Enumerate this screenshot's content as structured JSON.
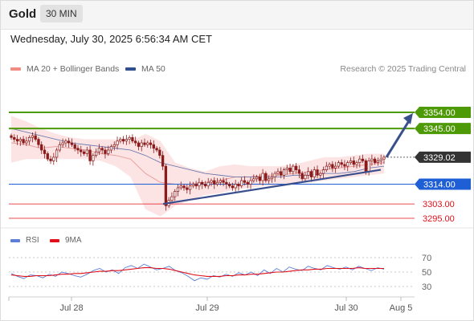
{
  "header": {
    "title": "Gold",
    "timeframe": "30 MIN",
    "datetime": "Wednesday, July 30, 2025 6:56:34 AM CET"
  },
  "legend": {
    "items": [
      {
        "label": "MA 20 + Bollinger Bands",
        "color": "#f28b82"
      },
      {
        "label": "MA 50",
        "color": "#2f4f8f"
      }
    ],
    "credit": "Research © 2025 Trading Central"
  },
  "rsi_legend": {
    "items": [
      {
        "label": "RSI",
        "color": "#5b7fd6"
      },
      {
        "label": "9MA",
        "color": "#e0101a"
      }
    ]
  },
  "colors": {
    "green_level": "#4e9a06",
    "blue_level": "#1f5fd6",
    "red_level": "#e0101a",
    "current_price": "#333333",
    "candle_up": "#ffffff",
    "candle_down": "#8b1a1a",
    "trendline": "#3a4f8e",
    "bollinger_fill": "#fbd5d5",
    "ma50": "#5d6fa8"
  },
  "chart_data": {
    "type": "candlestick",
    "timeframe": "30 MIN",
    "x_ticks": [
      "Jul 28",
      "Jul 29",
      "Jul 30",
      "Aug 5"
    ],
    "y_range": [
      3290,
      3362
    ],
    "levels": [
      {
        "value": 3354.0,
        "label": "3354.00",
        "kind": "resistance",
        "color": "#4e9a06"
      },
      {
        "value": 3345.0,
        "label": "3345.00",
        "kind": "resistance",
        "color": "#4e9a06"
      },
      {
        "value": 3329.02,
        "label": "3329.02",
        "kind": "current",
        "color": "#333333"
      },
      {
        "value": 3314.0,
        "label": "3314.00",
        "kind": "pivot",
        "color": "#1f5fd6"
      },
      {
        "value": 3303.0,
        "label": "3303.00",
        "kind": "support",
        "color": "#e0101a"
      },
      {
        "value": 3295.0,
        "label": "3295.00",
        "kind": "support",
        "color": "#e0101a"
      }
    ],
    "closes": [
      3340,
      3339,
      3338,
      3339,
      3337,
      3338,
      3340,
      3341,
      3339,
      3336,
      3333,
      3331,
      3328,
      3327,
      3329,
      3333,
      3336,
      3337,
      3338,
      3337,
      3336,
      3334,
      3333,
      3332,
      3331,
      3333,
      3327,
      3330,
      3332,
      3334,
      3333,
      3331,
      3333,
      3335,
      3336,
      3338,
      3339,
      3338,
      3339,
      3340,
      3338,
      3337,
      3335,
      3337,
      3336,
      3337,
      3336,
      3334,
      3333,
      3330,
      3324,
      3302,
      3305,
      3307,
      3310,
      3312,
      3313,
      3312,
      3311,
      3313,
      3314,
      3313,
      3315,
      3314,
      3313,
      3315,
      3316,
      3314,
      3315,
      3316,
      3315,
      3314,
      3313,
      3312,
      3314,
      3313,
      3316,
      3315,
      3314,
      3316,
      3317,
      3318,
      3316,
      3320,
      3316,
      3317,
      3318,
      3320,
      3321,
      3319,
      3322,
      3323,
      3321,
      3324,
      3322,
      3320,
      3317,
      3319,
      3321,
      3318,
      3322,
      3319,
      3320,
      3322,
      3324,
      3325,
      3323,
      3324,
      3326,
      3325,
      3324,
      3326,
      3327,
      3325,
      3326,
      3328,
      3327,
      3321,
      3327,
      3328,
      3326,
      3327,
      3328,
      3329
    ],
    "ma20_bollinger": {
      "middle": [
        3337,
        3336,
        3334,
        3335,
        3334,
        3333,
        3331,
        3330,
        3328,
        3320,
        3315,
        3314,
        3314,
        3315,
        3316,
        3318,
        3318,
        3319,
        3319,
        3320,
        3321,
        3322,
        3323,
        3324,
        3325,
        3326
      ],
      "upper": [
        3352,
        3349,
        3345,
        3342,
        3340,
        3339,
        3339,
        3339,
        3338,
        3342,
        3338,
        3326,
        3323,
        3321,
        3324,
        3325,
        3324,
        3324,
        3324,
        3325,
        3327,
        3329,
        3329,
        3330,
        3331,
        3331
      ],
      "lower": [
        3326,
        3328,
        3328,
        3328,
        3328,
        3328,
        3327,
        3324,
        3318,
        3300,
        3296,
        3302,
        3305,
        3308,
        3309,
        3311,
        3312,
        3313,
        3313,
        3314,
        3315,
        3316,
        3317,
        3318,
        3319,
        3320
      ]
    },
    "ma50": [
      3345,
      3343,
      3341,
      3339,
      3337,
      3336,
      3335,
      3334,
      3333,
      3330,
      3326,
      3324,
      3322,
      3320,
      3319,
      3318,
      3318,
      3318,
      3318,
      3319,
      3319,
      3320,
      3320,
      3321,
      3323,
      3324
    ],
    "trendline": {
      "from": 3303,
      "to": 3322
    },
    "forecast_target": 3354,
    "rsi": {
      "ticks": [
        30,
        50,
        70
      ],
      "rsi_values": [
        48,
        44,
        41,
        46,
        45,
        42,
        47,
        44,
        50,
        48,
        45,
        43,
        47,
        52,
        55,
        50,
        53,
        48,
        56,
        59,
        55,
        61,
        57,
        53,
        55,
        58,
        52,
        49,
        44,
        38,
        42,
        40,
        45,
        43,
        47,
        44,
        49,
        46,
        50,
        45,
        53,
        48,
        55,
        50,
        57,
        54,
        52,
        58,
        55,
        53,
        59,
        56,
        54,
        57,
        53,
        58,
        55,
        52,
        56,
        54
      ],
      "ma9_values": [
        46,
        45,
        44,
        44,
        45,
        45,
        45,
        46,
        47,
        47,
        48,
        48,
        49,
        50,
        51,
        51,
        52,
        52,
        53,
        54,
        55,
        56,
        56,
        55,
        55,
        54,
        52,
        50,
        48,
        46,
        45,
        44,
        44,
        44,
        45,
        45,
        46,
        46,
        47,
        47,
        48,
        49,
        50,
        50,
        51,
        52,
        53,
        53,
        54,
        54,
        55,
        55,
        55,
        55,
        55,
        56,
        55,
        55,
        55,
        55
      ]
    }
  }
}
